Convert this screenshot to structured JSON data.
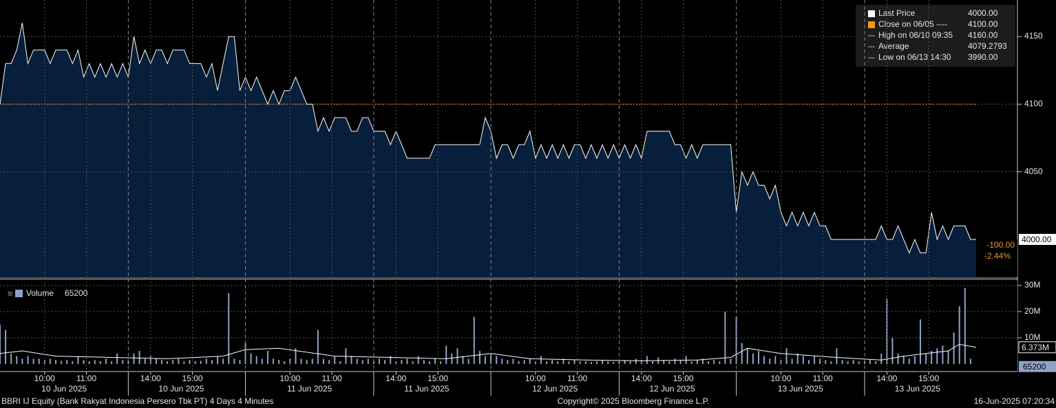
{
  "chart_data": [
    {
      "type": "area",
      "series": [
        {
          "name": "Last Price",
          "color": "#ffffff",
          "fill": "#071f3b",
          "values": [
            4100,
            4130,
            4130,
            4140,
            4160,
            4130,
            4140,
            4140,
            4140,
            4130,
            4140,
            4140,
            4140,
            4130,
            4140,
            4120,
            4130,
            4120,
            4130,
            4120,
            4130,
            4120,
            4130,
            4120,
            4150,
            4130,
            4140,
            4130,
            4140,
            4140,
            4130,
            4140,
            4140,
            4140,
            4130,
            4130,
            4130,
            4120,
            4130,
            4110,
            4130,
            4150,
            4150,
            4110,
            4120,
            4110,
            4120,
            4110,
            4100,
            4110,
            4100,
            4110,
            4110,
            4120,
            4110,
            4100,
            4100,
            4080,
            4090,
            4080,
            4090,
            4090,
            4090,
            4080,
            4080,
            4090,
            4090,
            4080,
            4080,
            4080,
            4070,
            4080,
            4070,
            4060,
            4060,
            4060,
            4060,
            4060,
            4070,
            4070,
            4070,
            4070,
            4070,
            4070,
            4070,
            4070,
            4070,
            4090,
            4080,
            4060,
            4070,
            4070,
            4060,
            4070,
            4070,
            4080,
            4060,
            4070,
            4060,
            4070,
            4060,
            4070,
            4060,
            4070,
            4070,
            4060,
            4070,
            4060,
            4070,
            4060,
            4070,
            4060,
            4070,
            4060,
            4070,
            4060,
            4080,
            4080,
            4080,
            4080,
            4080,
            4070,
            4070,
            4060,
            4070,
            4060,
            4070,
            4070,
            4070,
            4070,
            4070,
            4070,
            4020,
            4050,
            4040,
            4050,
            4040,
            4040,
            4030,
            4040,
            4020,
            4010,
            4020,
            4010,
            4020,
            4010,
            4020,
            4010,
            4010,
            4000,
            4000,
            4000,
            4000,
            4000,
            4000,
            4000,
            4000,
            4000,
            4010,
            4000,
            4000,
            4010,
            4000,
            3990,
            4000,
            3990,
            3990,
            4020,
            4000,
            4010,
            4000,
            4010,
            4010,
            4010,
            4000,
            4000
          ]
        }
      ],
      "ylim": [
        3972,
        4177
      ],
      "yticks": [
        4050,
        4100,
        4150
      ],
      "grid": true,
      "legend_position": "upper right",
      "legend": [
        {
          "label": "Last Price",
          "value": 4000,
          "value_label": "4000.00",
          "color": "#ffffff"
        },
        {
          "label": "Close on 06/05 ----",
          "value": 4100,
          "value_label": "4100.00",
          "color": "#f7941d"
        },
        {
          "label": "High on 06/10 09:35",
          "value": 4160,
          "value_label": "4160.00",
          "color": "#aaaaaa"
        },
        {
          "label": "Average",
          "value": 4079.2793,
          "value_label": "4079.2793",
          "color": "#aaaaaa"
        },
        {
          "label": "Low on 06/13 14:30",
          "value": 3990,
          "value_label": "3990.00",
          "color": "#aaaaaa"
        }
      ],
      "change": {
        "value": -100,
        "label": "-100.00"
      },
      "change_pct": {
        "value": -2.44,
        "label": "-2.44%"
      }
    },
    {
      "type": "bar",
      "series": [
        {
          "name": "Volume",
          "color": "#8fa3c8",
          "values": [
            15000000.0,
            13000000.0,
            4000000.0,
            3000000.0,
            2000000.0,
            3000000.0,
            2000000.0,
            2000000.0,
            1500000.0,
            2000000.0,
            1500000.0,
            1200000.0,
            1500000.0,
            1000000.0,
            3000000.0,
            1500000.0,
            1000000.0,
            1500000.0,
            1000000.0,
            2000000.0,
            1000000.0,
            4000000.0,
            1500000.0,
            1200000.0,
            4000000.0,
            5000000.0,
            2000000.0,
            3000000.0,
            2000000.0,
            1500000.0,
            1000000.0,
            1500000.0,
            2000000.0,
            1000000.0,
            1500000.0,
            1000000.0,
            1200000.0,
            2000000.0,
            1500000.0,
            3000000.0,
            2000000.0,
            27000000.0,
            2000000.0,
            1500000.0,
            8000000.0,
            4000000.0,
            3000000.0,
            2000000.0,
            5000000.0,
            2000000.0,
            1500000.0,
            1000000.0,
            2000000.0,
            6000000.0,
            2000000.0,
            1500000.0,
            2000000.0,
            13000000.0,
            2000000.0,
            1500000.0,
            3000000.0,
            1000000.0,
            6000000.0,
            3000000.0,
            2000000.0,
            1500000.0,
            2000000.0,
            1000000.0,
            2000000.0,
            1500000.0,
            3000000.0,
            1000000.0,
            1500000.0,
            2000000.0,
            1000000.0,
            3000000.0,
            1500000.0,
            1000000.0,
            2000000.0,
            1000000.0,
            7000000.0,
            4000000.0,
            6000000.0,
            3000000.0,
            2000000.0,
            18000000.0,
            5000000.0,
            3000000.0,
            4000000.0,
            3000000.0,
            2000000.0,
            1500000.0,
            2000000.0,
            1000000.0,
            1500000.0,
            2000000.0,
            1000000.0,
            3000000.0,
            1000000.0,
            1500000.0,
            1000000.0,
            2000000.0,
            1000000.0,
            1500000.0,
            1000000.0,
            1000000.0,
            800000.0,
            1000000.0,
            1500000.0,
            1000000.0,
            800000.0,
            1000000.0,
            1500000.0,
            1000000.0,
            2000000.0,
            1500000.0,
            3000000.0,
            1000000.0,
            2500000.0,
            1500000.0,
            1000000.0,
            2000000.0,
            1500000.0,
            3000000.0,
            1000000.0,
            1500000.0,
            2000000.0,
            1000000.0,
            1500000.0,
            1000000.0,
            20000000.0,
            2000000.0,
            18000000.0,
            8000000.0,
            6000000.0,
            4000000.0,
            5000000.0,
            3000000.0,
            2000000.0,
            3000000.0,
            1500000.0,
            6000000.0,
            2000000.0,
            4000000.0,
            3000000.0,
            1500000.0,
            3000000.0,
            2000000.0,
            1500000.0,
            1000000.0,
            6000000.0,
            1500000.0,
            1000000.0,
            1500000.0,
            1000000.0,
            1000000.0,
            1500000.0,
            1000000.0,
            4000000.0,
            25000000.0,
            10000000.0,
            4000000.0,
            3000000.0,
            2000000.0,
            3000000.0,
            17000000.0,
            4000000.0,
            5000000.0,
            6000000.0,
            7000000.0,
            5000000.0,
            12000000.0,
            22000000.0,
            29000000.0,
            2000000.0,
            65200
          ]
        }
      ],
      "average": {
        "color": "#ffffff",
        "x": [
          0,
          4,
          10,
          20,
          30,
          40,
          44,
          50,
          60,
          70,
          80,
          88,
          95,
          105,
          115,
          125,
          131,
          134,
          140,
          150,
          158,
          162,
          166,
          170,
          172,
          175
        ],
        "values": [
          4000000.0,
          5000000.0,
          3000000.0,
          2500000.0,
          2000000.0,
          3000000.0,
          5500000.0,
          6000000.0,
          3000000.0,
          2500000.0,
          2000000.0,
          4000000.0,
          2000000.0,
          1500000.0,
          1200000.0,
          1500000.0,
          2500000.0,
          6000000.0,
          4000000.0,
          2500000.0,
          1500000.0,
          3000000.0,
          4000000.0,
          5000000.0,
          7500000.0,
          6373000
        ],
        "last_label": "6.373M"
      },
      "ylim": [
        0,
        31800000
      ],
      "yticks": [
        {
          "value": 10000000,
          "label": "10M"
        },
        {
          "value": 20000000,
          "label": "20M"
        },
        {
          "value": 30000000,
          "label": "30M"
        }
      ],
      "grid": true
    }
  ],
  "x_axis": {
    "ticks": [
      {
        "value": 8,
        "label": "10:00"
      },
      {
        "value": 15.5,
        "label": "11:00"
      },
      {
        "value": 27,
        "label": "14:00"
      },
      {
        "value": 34.5,
        "label": "15:00"
      },
      {
        "value": 52,
        "label": "10:00"
      },
      {
        "value": 59.5,
        "label": "11:00"
      },
      {
        "value": 71,
        "label": "14:00"
      },
      {
        "value": 78.5,
        "label": "15:00"
      },
      {
        "value": 96,
        "label": "10:00"
      },
      {
        "value": 103.5,
        "label": "11:00"
      },
      {
        "value": 115,
        "label": "14:00"
      },
      {
        "value": 122.5,
        "label": "15:00"
      },
      {
        "value": 140,
        "label": "10:00"
      },
      {
        "value": 147.5,
        "label": "11:00"
      },
      {
        "value": 159,
        "label": "14:00"
      },
      {
        "value": 166.5,
        "label": "15:00"
      }
    ],
    "dates": [
      {
        "value": 11.5,
        "label": "10 Jun 2025"
      },
      {
        "value": 32.5,
        "label": "10 Jun 2025"
      },
      {
        "value": 55.5,
        "label": "11 Jun 2025"
      },
      {
        "value": 76.5,
        "label": "11 Jun 2025"
      },
      {
        "value": 99.5,
        "label": "12 Jun 2025"
      },
      {
        "value": 120.5,
        "label": "12 Jun 2025"
      },
      {
        "value": 143.5,
        "label": "13 Jun 2025"
      },
      {
        "value": 164.5,
        "label": "13 Jun 2025"
      }
    ],
    "session_breaks": [
      23,
      44,
      67,
      88,
      111,
      132,
      155
    ]
  },
  "footer": {
    "left": "BBRI IJ Equity (Bank Rakyat Indonesia Persero Tbk PT) 4 Days 4 Minutes",
    "center": "Copyright© 2025 Bloomberg Finance L.P.",
    "right": "16-Jun-2025 07:20:34"
  }
}
